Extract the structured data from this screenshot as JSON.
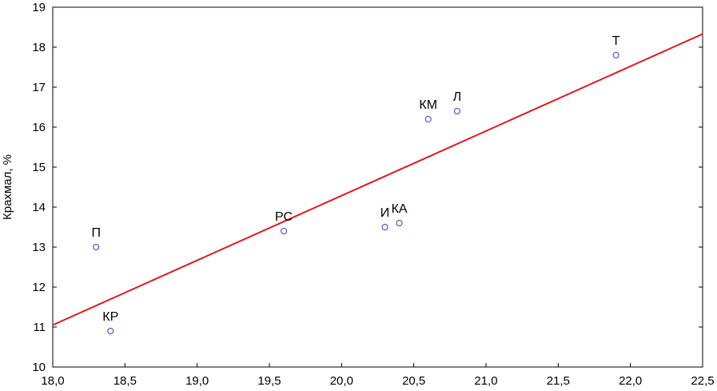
{
  "chart_data": {
    "type": "scatter",
    "title": "",
    "xlabel": "",
    "ylabel": "Крахмал, %",
    "xlim": [
      18.0,
      22.5
    ],
    "ylim": [
      10,
      19
    ],
    "x_ticks": [
      "18,0",
      "18,5",
      "19,0",
      "19,5",
      "20,0",
      "20,5",
      "21,0",
      "21,5",
      "22,0",
      "22,5"
    ],
    "y_ticks": [
      "10",
      "11",
      "12",
      "13",
      "14",
      "15",
      "16",
      "17",
      "18",
      "19"
    ],
    "grid": false,
    "points": [
      {
        "label": "П",
        "x": 18.3,
        "y": 13.0
      },
      {
        "label": "КР",
        "x": 18.4,
        "y": 10.9
      },
      {
        "label": "РС",
        "x": 19.6,
        "y": 13.4
      },
      {
        "label": "И",
        "x": 20.3,
        "y": 13.5
      },
      {
        "label": "КА",
        "x": 20.4,
        "y": 13.6
      },
      {
        "label": "КМ",
        "x": 20.6,
        "y": 16.2
      },
      {
        "label": "Л",
        "x": 20.8,
        "y": 16.4
      },
      {
        "label": "Т",
        "x": 21.9,
        "y": 17.8
      }
    ],
    "regression": {
      "x": [
        18.0,
        22.5
      ],
      "y": [
        11.05,
        18.33
      ]
    },
    "colors": {
      "points": "#3a3acc",
      "line": "#e0191e",
      "axis": "#000000"
    }
  }
}
